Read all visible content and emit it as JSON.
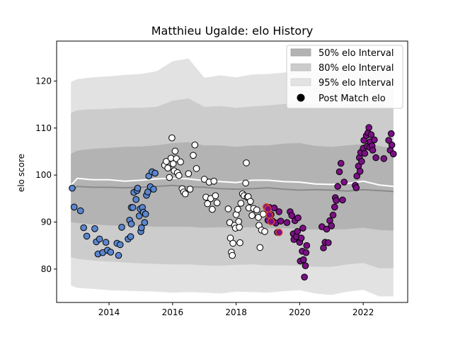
{
  "chart_data": {
    "type": "scatter",
    "title": "Matthieu Ugalde: elo History",
    "xlabel": "",
    "ylabel": "elo score",
    "xlim": [
      2012.35,
      2023.4
    ],
    "ylim": [
      72.9,
      128.5
    ],
    "x_ticks": [
      2014,
      2016,
      2018,
      2020,
      2022
    ],
    "y_ticks": [
      80,
      90,
      100,
      110,
      120
    ],
    "legend_position": "top-right",
    "legend": [
      {
        "label": "50% elo Interval",
        "kind": "band",
        "color": "#b3b3b3"
      },
      {
        "label": "80% elo Interval",
        "kind": "band",
        "color": "#cccccc"
      },
      {
        "label": "95% elo Interval",
        "kind": "band",
        "color": "#e2e2e2"
      },
      {
        "label": "Post Match elo",
        "kind": "marker",
        "color": "#000000"
      }
    ],
    "colors": {
      "band95": "#e2e2e2",
      "band80": "#cccccc",
      "band50": "#b3b3b3",
      "mean_line": "#ffffff",
      "median_line": "#8a8a8a",
      "marker_edge": "#000000",
      "highlight_edge": "#d9442a"
    },
    "bands": {
      "x": [
        2012.8,
        2013.0,
        2013.5,
        2014.0,
        2014.5,
        2015.0,
        2015.5,
        2016.0,
        2016.5,
        2017.0,
        2017.5,
        2018.0,
        2018.5,
        2019.0,
        2019.5,
        2020.0,
        2020.5,
        2021.0,
        2021.5,
        2022.0,
        2022.5,
        2022.95
      ],
      "p95": [
        [
          76.5,
          119.8
        ],
        [
          76.0,
          120.4
        ],
        [
          75.8,
          120.8
        ],
        [
          75.5,
          121.0
        ],
        [
          75.4,
          121.3
        ],
        [
          75.3,
          121.5
        ],
        [
          75.2,
          122.1
        ],
        [
          75.0,
          124.2
        ],
        [
          75.1,
          124.8
        ],
        [
          75.0,
          120.7
        ],
        [
          74.8,
          121.2
        ],
        [
          75.2,
          120.8
        ],
        [
          75.1,
          121.4
        ],
        [
          75.0,
          121.5
        ],
        [
          75.3,
          121.8
        ],
        [
          75.5,
          122.4
        ],
        [
          74.8,
          122.0
        ],
        [
          74.5,
          121.6
        ],
        [
          75.2,
          122.8
        ],
        [
          75.6,
          125.0
        ],
        [
          74.2,
          123.0
        ],
        [
          74.2,
          121.8
        ]
      ],
      "p80": [
        [
          82.5,
          113.2
        ],
        [
          82.2,
          113.8
        ],
        [
          81.8,
          114.0
        ],
        [
          81.6,
          114.1
        ],
        [
          81.4,
          114.3
        ],
        [
          81.2,
          114.3
        ],
        [
          81.1,
          114.5
        ],
        [
          81.0,
          115.8
        ],
        [
          81.0,
          116.3
        ],
        [
          80.8,
          114.5
        ],
        [
          80.7,
          114.7
        ],
        [
          80.9,
          114.3
        ],
        [
          81.0,
          114.6
        ],
        [
          80.8,
          114.8
        ],
        [
          80.8,
          115.1
        ],
        [
          80.7,
          115.4
        ],
        [
          80.5,
          114.9
        ],
        [
          80.5,
          114.5
        ],
        [
          81.0,
          115.0
        ],
        [
          81.3,
          115.4
        ],
        [
          80.2,
          115.0
        ],
        [
          80.2,
          114.4
        ]
      ],
      "p50": [
        [
          90.0,
          104.5
        ],
        [
          89.8,
          105.2
        ],
        [
          89.5,
          105.6
        ],
        [
          89.3,
          105.8
        ],
        [
          89.2,
          106.0
        ],
        [
          89.2,
          106.1
        ],
        [
          89.0,
          106.3
        ],
        [
          89.0,
          106.8
        ],
        [
          89.0,
          107.0
        ],
        [
          88.8,
          106.3
        ],
        [
          88.9,
          106.3
        ],
        [
          88.8,
          106.0
        ],
        [
          88.9,
          106.3
        ],
        [
          88.7,
          106.3
        ],
        [
          88.7,
          106.7
        ],
        [
          88.5,
          106.8
        ],
        [
          88.4,
          106.2
        ],
        [
          88.4,
          106.0
        ],
        [
          88.5,
          106.3
        ],
        [
          88.8,
          106.6
        ],
        [
          88.3,
          106.2
        ],
        [
          88.2,
          105.7
        ]
      ],
      "mean": [
        97.8,
        99.3,
        99.0,
        99.0,
        98.7,
        98.9,
        99.2,
        99.3,
        99.2,
        98.8,
        98.6,
        98.4,
        98.9,
        98.9,
        98.6,
        98.5,
        98.1,
        98.0,
        98.2,
        98.7,
        97.9,
        97.6
      ],
      "median": [
        96.7,
        97.6,
        97.4,
        97.4,
        97.3,
        97.4,
        97.6,
        97.8,
        97.5,
        97.4,
        97.1,
        97.0,
        97.1,
        97.3,
        97.0,
        96.8,
        96.9,
        96.8,
        96.6,
        96.9,
        96.7,
        96.5
      ]
    },
    "series": [
      {
        "color": "#5b86cf",
        "points": [
          [
            2012.84,
            97.2
          ],
          [
            2012.9,
            93.2
          ],
          [
            2013.1,
            92.4
          ],
          [
            2013.2,
            88.8
          ],
          [
            2013.3,
            87.0
          ],
          [
            2013.55,
            88.6
          ],
          [
            2013.6,
            85.8
          ],
          [
            2013.65,
            83.2
          ],
          [
            2013.7,
            86.4
          ],
          [
            2013.8,
            83.5
          ],
          [
            2013.9,
            85.7
          ],
          [
            2013.95,
            84.0
          ],
          [
            2014.05,
            83.6
          ],
          [
            2014.25,
            85.5
          ],
          [
            2014.3,
            82.9
          ],
          [
            2014.35,
            85.2
          ],
          [
            2014.4,
            88.9
          ],
          [
            2014.6,
            86.4
          ],
          [
            2014.65,
            90.4
          ],
          [
            2014.7,
            89.6
          ],
          [
            2014.68,
            86.9
          ],
          [
            2014.7,
            93.1
          ],
          [
            2014.75,
            93.1
          ],
          [
            2014.78,
            96.3
          ],
          [
            2014.85,
            94.8
          ],
          [
            2014.88,
            96.7
          ],
          [
            2014.9,
            97.2
          ],
          [
            2014.95,
            91.3
          ],
          [
            2014.98,
            92.8
          ],
          [
            2015.0,
            88.0
          ],
          [
            2015.02,
            88.8
          ],
          [
            2015.05,
            93.1
          ],
          [
            2015.08,
            92.1
          ],
          [
            2015.12,
            89.9
          ],
          [
            2015.15,
            91.7
          ],
          [
            2015.18,
            95.7
          ],
          [
            2015.22,
            96.4
          ],
          [
            2015.25,
            99.8
          ],
          [
            2015.3,
            97.5
          ],
          [
            2015.35,
            100.7
          ],
          [
            2015.4,
            97.0
          ],
          [
            2015.45,
            100.4
          ]
        ]
      },
      {
        "color": "#ffffff",
        "points": [
          [
            2015.75,
            102.1
          ],
          [
            2015.8,
            102.9
          ],
          [
            2015.85,
            101.5
          ],
          [
            2015.9,
            99.5
          ],
          [
            2015.95,
            103.6
          ],
          [
            2015.98,
            107.9
          ],
          [
            2016.02,
            102.4
          ],
          [
            2016.05,
            100.9
          ],
          [
            2016.08,
            105.1
          ],
          [
            2016.12,
            103.5
          ],
          [
            2016.15,
            100.5
          ],
          [
            2016.2,
            99.9
          ],
          [
            2016.25,
            102.8
          ],
          [
            2016.3,
            97.1
          ],
          [
            2016.35,
            96.4
          ],
          [
            2016.4,
            96.0
          ],
          [
            2016.5,
            100.3
          ],
          [
            2016.55,
            97.0
          ],
          [
            2016.65,
            104.2
          ],
          [
            2016.7,
            106.4
          ],
          [
            2016.75,
            101.4
          ],
          [
            2017.0,
            99.1
          ],
          [
            2017.05,
            95.3
          ],
          [
            2017.1,
            93.9
          ],
          [
            2017.15,
            98.5
          ],
          [
            2017.2,
            95.0
          ],
          [
            2017.25,
            92.7
          ],
          [
            2017.3,
            98.7
          ],
          [
            2017.35,
            95.6
          ],
          [
            2017.4,
            94.1
          ],
          [
            2017.75,
            92.8
          ],
          [
            2017.8,
            89.9
          ],
          [
            2017.82,
            86.6
          ],
          [
            2017.85,
            83.6
          ],
          [
            2017.88,
            82.9
          ],
          [
            2017.9,
            85.5
          ],
          [
            2017.95,
            89.3
          ],
          [
            2017.98,
            88.7
          ],
          [
            2018.0,
            91.6
          ],
          [
            2018.05,
            92.7
          ],
          [
            2018.08,
            90.1
          ],
          [
            2018.1,
            88.9
          ],
          [
            2018.12,
            85.6
          ],
          [
            2018.15,
            94.0
          ],
          [
            2018.2,
            96.0
          ],
          [
            2018.25,
            95.6
          ],
          [
            2018.3,
            98.3
          ],
          [
            2018.32,
            102.6
          ],
          [
            2018.35,
            95.3
          ],
          [
            2018.38,
            95.4
          ],
          [
            2018.4,
            93.0
          ],
          [
            2018.45,
            94.4
          ],
          [
            2018.5,
            91.4
          ],
          [
            2018.55,
            92.9
          ],
          [
            2018.65,
            92.6
          ],
          [
            2018.7,
            91.0
          ],
          [
            2018.72,
            89.3
          ],
          [
            2018.75,
            84.6
          ],
          [
            2018.8,
            88.3
          ],
          [
            2018.85,
            91.7
          ],
          [
            2018.9,
            88.0
          ]
        ]
      },
      {
        "color": "#7a1084",
        "points": [
          [
            2019.0,
            90.4
          ],
          [
            2019.05,
            93.1
          ],
          [
            2019.1,
            91.6
          ],
          [
            2019.15,
            90.2
          ],
          [
            2019.2,
            93.0
          ],
          [
            2019.25,
            89.8
          ],
          [
            2019.3,
            87.8
          ],
          [
            2019.35,
            92.2
          ],
          [
            2019.4,
            90.2
          ],
          [
            2019.6,
            89.9
          ],
          [
            2019.7,
            92.2
          ],
          [
            2019.75,
            91.4
          ],
          [
            2019.8,
            87.5
          ],
          [
            2019.82,
            86.3
          ],
          [
            2019.85,
            90.3
          ],
          [
            2019.9,
            86.9
          ],
          [
            2019.93,
            88.0
          ],
          [
            2019.95,
            90.9
          ],
          [
            2020.0,
            85.7
          ],
          [
            2020.02,
            81.7
          ],
          [
            2020.05,
            86.6
          ],
          [
            2020.08,
            83.8
          ],
          [
            2020.1,
            88.7
          ],
          [
            2020.12,
            82.0
          ],
          [
            2020.15,
            78.3
          ],
          [
            2020.18,
            80.7
          ],
          [
            2020.2,
            83.5
          ],
          [
            2020.22,
            85.0
          ],
          [
            2020.7,
            89.0
          ],
          [
            2020.75,
            84.5
          ],
          [
            2020.8,
            85.7
          ],
          [
            2020.85,
            88.5
          ],
          [
            2020.9,
            85.6
          ],
          [
            2020.95,
            90.3
          ],
          [
            2021.0,
            89.2
          ],
          [
            2021.05,
            91.5
          ],
          [
            2021.1,
            93.2
          ],
          [
            2021.12,
            95.2
          ],
          [
            2021.15,
            94.6
          ],
          [
            2021.2,
            97.6
          ],
          [
            2021.25,
            100.7
          ],
          [
            2021.3,
            102.5
          ],
          [
            2021.35,
            94.7
          ],
          [
            2021.4,
            98.5
          ],
          [
            2021.75,
            97.8
          ],
          [
            2021.78,
            97.3
          ],
          [
            2021.8,
            99.8
          ],
          [
            2021.85,
            101.9
          ],
          [
            2021.88,
            103.7
          ],
          [
            2021.9,
            100.8
          ],
          [
            2021.92,
            104.8
          ],
          [
            2021.95,
            102.9
          ],
          [
            2022.0,
            105.7
          ],
          [
            2022.02,
            107.4
          ],
          [
            2022.05,
            104.6
          ],
          [
            2022.1,
            108.4
          ],
          [
            2022.12,
            106.1
          ],
          [
            2022.15,
            109.0
          ],
          [
            2022.18,
            110.1
          ],
          [
            2022.2,
            105.9
          ],
          [
            2022.22,
            107.1
          ],
          [
            2022.25,
            108.6
          ],
          [
            2022.28,
            106.2
          ],
          [
            2022.3,
            105.3
          ],
          [
            2022.35,
            107.5
          ],
          [
            2022.4,
            103.7
          ],
          [
            2022.65,
            103.5
          ],
          [
            2022.8,
            107.4
          ],
          [
            2022.85,
            105.3
          ],
          [
            2022.88,
            108.8
          ],
          [
            2022.9,
            106.4
          ],
          [
            2022.95,
            104.5
          ]
        ]
      }
    ],
    "highlighted_points": [
      [
        2018.95,
        93.2
      ],
      [
        2019.0,
        92.8
      ],
      [
        2019.05,
        91.5
      ],
      [
        2019.1,
        90.1
      ],
      [
        2019.35,
        87.8
      ]
    ]
  }
}
